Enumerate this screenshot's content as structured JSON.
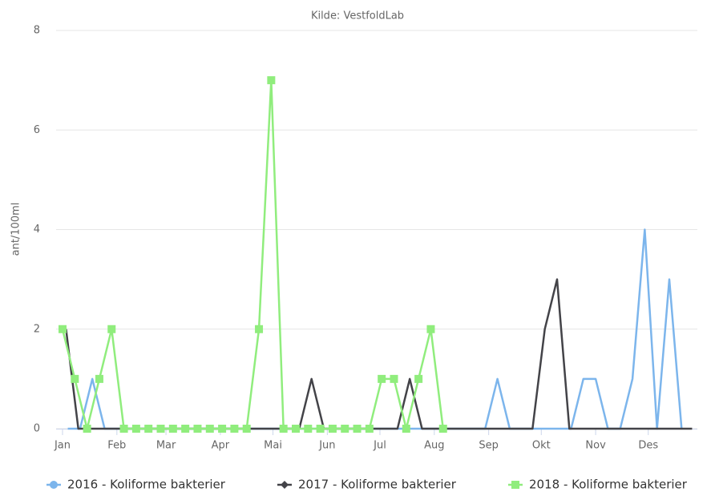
{
  "chart_data": {
    "type": "line",
    "subtitle": "Kilde: VestfoldLab",
    "y_label": "ant/100ml",
    "xlim": [
      0,
      362
    ],
    "ylim": [
      0,
      8
    ],
    "xticks": [
      {
        "value": 0,
        "label": "Jan"
      },
      {
        "value": 31,
        "label": "Feb"
      },
      {
        "value": 59,
        "label": "Mar"
      },
      {
        "value": 90,
        "label": "Apr"
      },
      {
        "value": 120,
        "label": "Mai"
      },
      {
        "value": 151,
        "label": "Jun"
      },
      {
        "value": 181,
        "label": "Jul"
      },
      {
        "value": 212,
        "label": "Aug"
      },
      {
        "value": 243,
        "label": "Sep"
      },
      {
        "value": 273,
        "label": "Okt"
      },
      {
        "value": 304,
        "label": "Nov"
      },
      {
        "value": 334,
        "label": "Des"
      }
    ],
    "yticks": [
      0,
      2,
      4,
      6,
      8
    ],
    "grid": true,
    "legend": "bottom",
    "series": [
      {
        "name": "2016 - Koliforme bakterier",
        "color": "#7cb5ec",
        "symbol": "circle",
        "show_markers": false,
        "x": [
          3,
          10,
          17,
          24,
          31,
          38,
          45,
          52,
          59,
          66,
          73,
          80,
          87,
          94,
          101,
          108,
          115,
          122,
          129,
          136,
          143,
          150,
          157,
          164,
          171,
          178,
          185,
          192,
          199,
          206,
          213,
          220,
          227,
          234,
          241,
          248,
          255,
          262,
          269,
          276,
          283,
          290,
          297,
          304,
          311,
          318,
          325,
          332,
          339,
          346,
          353
        ],
        "values": [
          0,
          0,
          1,
          0,
          0,
          0,
          0,
          0,
          0,
          0,
          0,
          0,
          0,
          0,
          0,
          0,
          0,
          0,
          0,
          0,
          0,
          0,
          0,
          0,
          0,
          0,
          0,
          0,
          0,
          0,
          0,
          0,
          0,
          0,
          0,
          1,
          0,
          0,
          0,
          0,
          0,
          0,
          1,
          1,
          0,
          0,
          1,
          4,
          0,
          3,
          0
        ]
      },
      {
        "name": "2017 - Koliforme bakterier",
        "color": "#434348",
        "symbol": "diamond",
        "show_markers": false,
        "x": [
          2,
          9,
          16,
          23,
          30,
          37,
          44,
          51,
          58,
          65,
          72,
          79,
          86,
          93,
          100,
          107,
          114,
          121,
          128,
          135,
          142,
          149,
          156,
          163,
          170,
          177,
          184,
          191,
          198,
          205,
          212,
          219,
          226,
          233,
          240,
          247,
          254,
          261,
          268,
          275,
          282,
          289,
          296,
          303,
          310,
          317,
          324,
          331,
          338,
          345,
          352,
          359
        ],
        "values": [
          2,
          0,
          0,
          0,
          0,
          0,
          0,
          0,
          0,
          0,
          0,
          0,
          0,
          0,
          0,
          0,
          0,
          0,
          0,
          0,
          1,
          0,
          0,
          0,
          0,
          0,
          0,
          0,
          1,
          0,
          0,
          0,
          0,
          0,
          0,
          0,
          0,
          0,
          0,
          2,
          3,
          0,
          0,
          0,
          0,
          0,
          0,
          0,
          0,
          0,
          0,
          0
        ]
      },
      {
        "name": "2018 - Koliforme bakterier",
        "color": "#90ed7d",
        "symbol": "square",
        "show_markers": true,
        "x": [
          0,
          7,
          14,
          21,
          28,
          35,
          42,
          49,
          56,
          63,
          70,
          77,
          84,
          91,
          98,
          105,
          112,
          119,
          126,
          133,
          140,
          147,
          154,
          161,
          168,
          175,
          182,
          189,
          196,
          203,
          210,
          217
        ],
        "values": [
          2,
          1,
          0,
          1,
          2,
          0,
          0,
          0,
          0,
          0,
          0,
          0,
          0,
          0,
          0,
          0,
          2,
          7,
          0,
          0,
          0,
          0,
          0,
          0,
          0,
          0,
          1,
          1,
          0,
          1,
          2,
          0
        ]
      }
    ]
  }
}
